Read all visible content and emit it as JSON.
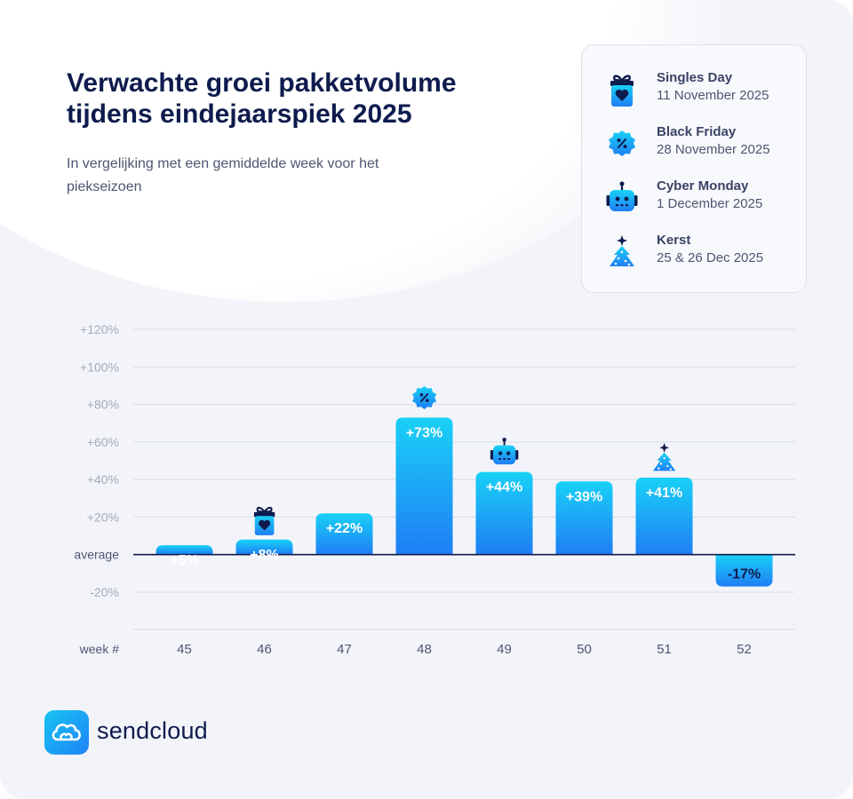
{
  "header": {
    "title": "Verwachte groei pakketvolume tijdens eindejaarspiek 2025",
    "subtitle": "In vergelijking met een gemiddelde week voor het piekseizoen"
  },
  "legend": {
    "items": [
      {
        "name": "Singles Day",
        "date": "11 November 2025",
        "icon": "gift-heart-icon"
      },
      {
        "name": "Black Friday",
        "date": "28 November 2025",
        "icon": "percent-badge-icon"
      },
      {
        "name": "Cyber Monday",
        "date": "1 December 2025",
        "icon": "robot-icon"
      },
      {
        "name": "Kerst",
        "date": "25 & 26 Dec 2025",
        "icon": "christmas-tree-icon"
      }
    ]
  },
  "chart_data": {
    "type": "bar",
    "xlabel": "week #",
    "ylabel": "",
    "categories": [
      "45",
      "46",
      "47",
      "48",
      "49",
      "50",
      "51",
      "52"
    ],
    "values": [
      5,
      8,
      22,
      73,
      44,
      39,
      41,
      -17
    ],
    "value_labels": [
      "+5%",
      "+8%",
      "+22%",
      "+73%",
      "+44%",
      "+39%",
      "+41%",
      "-17%"
    ],
    "ylim": [
      -20,
      120
    ],
    "y_ticks": [
      {
        "value": 120,
        "label": "+120%"
      },
      {
        "value": 100,
        "label": "+100%"
      },
      {
        "value": 80,
        "label": "+80%"
      },
      {
        "value": 60,
        "label": "+60%"
      },
      {
        "value": 40,
        "label": "+40%"
      },
      {
        "value": 20,
        "label": "+20%"
      },
      {
        "value": 0,
        "label": "average"
      },
      {
        "value": -20,
        "label": "-20%"
      }
    ],
    "bar_icons": [
      {
        "category": "46",
        "icon": "gift-heart-icon"
      },
      {
        "category": "48",
        "icon": "percent-badge-icon"
      },
      {
        "category": "49",
        "icon": "robot-icon"
      },
      {
        "category": "51",
        "icon": "christmas-tree-icon"
      }
    ],
    "grid": true,
    "legend_position": "top-right"
  },
  "brand": {
    "name": "sendcloud",
    "icon": "cloud-icon"
  },
  "colors": {
    "navy": "#0e1b4d",
    "bar_top": "#19d1f6",
    "bar_bottom": "#1f7ef5",
    "card_bg": "#f3f4f9"
  }
}
